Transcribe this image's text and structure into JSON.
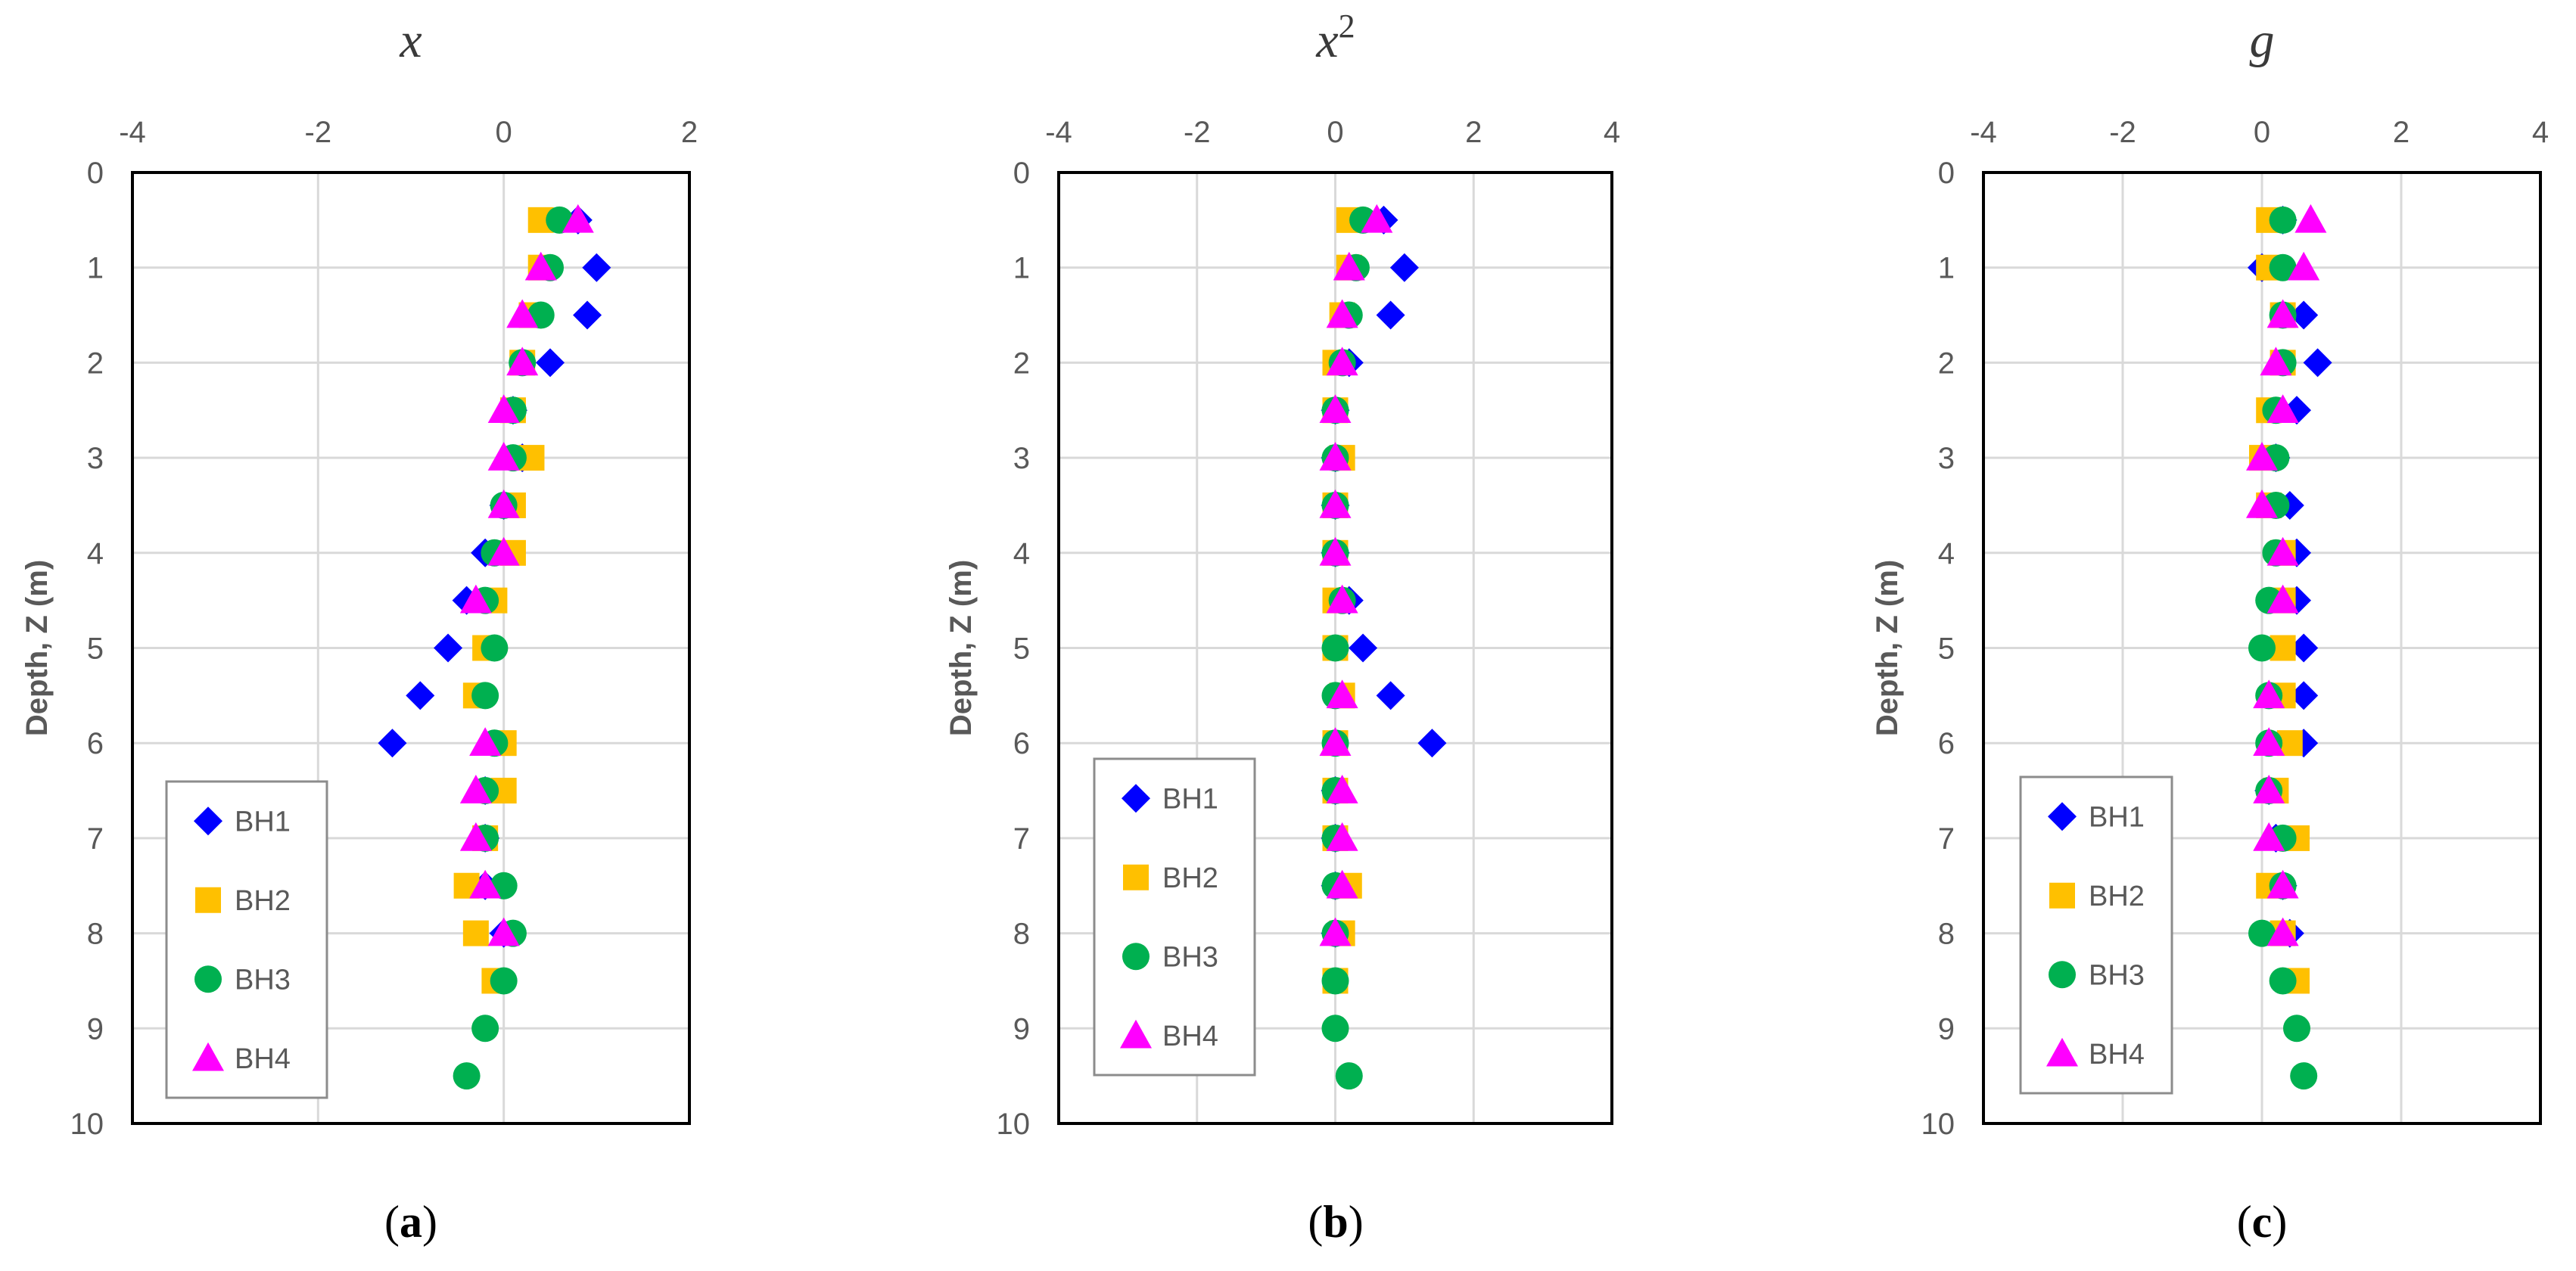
{
  "chart_data": [
    {
      "type": "scatter",
      "title": "x",
      "title_superscript": "",
      "caption_letter": "a",
      "ylabel": "Depth, Z (m)",
      "xlim": [
        -4,
        2
      ],
      "xticks": [
        -4,
        -2,
        0,
        2
      ],
      "ylim": [
        0,
        10
      ],
      "yticks": [
        0,
        1,
        2,
        3,
        4,
        5,
        6,
        7,
        8,
        9,
        10
      ],
      "y_inverted": true,
      "grid": true,
      "legend_position": "bottom-left",
      "series": [
        {
          "name": "BH1",
          "marker": "diamond",
          "color": "#0000ff",
          "points": [
            [
              0.8,
              0.5
            ],
            [
              1.0,
              1.0
            ],
            [
              0.9,
              1.5
            ],
            [
              0.5,
              2.0
            ],
            [
              0.1,
              2.5
            ],
            [
              0.2,
              3.0
            ],
            [
              0.0,
              3.5
            ],
            [
              -0.2,
              4.0
            ],
            [
              -0.4,
              4.5
            ],
            [
              -0.6,
              5.0
            ],
            [
              -0.9,
              5.5
            ],
            [
              -1.2,
              6.0
            ],
            [
              -0.2,
              6.5
            ],
            [
              -0.2,
              7.0
            ],
            [
              -0.2,
              7.5
            ],
            [
              0.0,
              8.0
            ]
          ]
        },
        {
          "name": "BH2",
          "marker": "square",
          "color": "#ffc000",
          "points": [
            [
              0.4,
              0.5
            ],
            [
              0.4,
              1.0
            ],
            [
              0.3,
              1.5
            ],
            [
              0.2,
              2.0
            ],
            [
              0.1,
              2.5
            ],
            [
              0.3,
              3.0
            ],
            [
              0.1,
              3.5
            ],
            [
              0.1,
              4.0
            ],
            [
              -0.1,
              4.5
            ],
            [
              -0.2,
              5.0
            ],
            [
              -0.3,
              5.5
            ],
            [
              0.0,
              6.0
            ],
            [
              0.0,
              6.5
            ],
            [
              -0.2,
              7.0
            ],
            [
              -0.4,
              7.5
            ],
            [
              -0.3,
              8.0
            ],
            [
              -0.1,
              8.5
            ]
          ]
        },
        {
          "name": "BH3",
          "marker": "circle",
          "color": "#00b050",
          "points": [
            [
              0.6,
              0.5
            ],
            [
              0.5,
              1.0
            ],
            [
              0.4,
              1.5
            ],
            [
              0.2,
              2.0
            ],
            [
              0.1,
              2.5
            ],
            [
              0.1,
              3.0
            ],
            [
              0.0,
              3.5
            ],
            [
              -0.1,
              4.0
            ],
            [
              -0.2,
              4.5
            ],
            [
              -0.1,
              5.0
            ],
            [
              -0.2,
              5.5
            ],
            [
              -0.1,
              6.0
            ],
            [
              -0.2,
              6.5
            ],
            [
              -0.2,
              7.0
            ],
            [
              0.0,
              7.5
            ],
            [
              0.1,
              8.0
            ],
            [
              0.0,
              8.5
            ],
            [
              -0.2,
              9.0
            ],
            [
              -0.4,
              9.5
            ]
          ]
        },
        {
          "name": "BH4",
          "marker": "triangle",
          "color": "#ff00ff",
          "points": [
            [
              0.8,
              0.5
            ],
            [
              0.4,
              1.0
            ],
            [
              0.2,
              1.5
            ],
            [
              0.2,
              2.0
            ],
            [
              0.0,
              2.5
            ],
            [
              0.0,
              3.0
            ],
            [
              0.0,
              3.5
            ],
            [
              0.0,
              4.0
            ],
            [
              -0.3,
              4.5
            ],
            [
              -0.2,
              6.0
            ],
            [
              -0.3,
              6.5
            ],
            [
              -0.3,
              7.0
            ],
            [
              -0.2,
              7.5
            ],
            [
              0.0,
              8.0
            ]
          ]
        }
      ]
    },
    {
      "type": "scatter",
      "title": "x",
      "title_superscript": "2",
      "caption_letter": "b",
      "ylabel": "Depth, Z (m)",
      "xlim": [
        -4,
        4
      ],
      "xticks": [
        -4,
        -2,
        0,
        2,
        4
      ],
      "ylim": [
        0,
        10
      ],
      "yticks": [
        0,
        1,
        2,
        3,
        4,
        5,
        6,
        7,
        8,
        9,
        10
      ],
      "y_inverted": true,
      "grid": true,
      "legend_position": "bottom-left",
      "series": [
        {
          "name": "BH1",
          "marker": "diamond",
          "color": "#0000ff",
          "points": [
            [
              0.7,
              0.5
            ],
            [
              1.0,
              1.0
            ],
            [
              0.8,
              1.5
            ],
            [
              0.2,
              2.0
            ],
            [
              0.0,
              2.5
            ],
            [
              0.0,
              3.0
            ],
            [
              0.0,
              3.5
            ],
            [
              0.0,
              4.0
            ],
            [
              0.2,
              4.5
            ],
            [
              0.4,
              5.0
            ],
            [
              0.8,
              5.5
            ],
            [
              1.4,
              6.0
            ],
            [
              0.0,
              6.5
            ],
            [
              0.0,
              7.0
            ],
            [
              0.0,
              7.5
            ],
            [
              0.0,
              8.0
            ]
          ]
        },
        {
          "name": "BH2",
          "marker": "square",
          "color": "#ffc000",
          "points": [
            [
              0.2,
              0.5
            ],
            [
              0.2,
              1.0
            ],
            [
              0.1,
              1.5
            ],
            [
              0.0,
              2.0
            ],
            [
              0.0,
              2.5
            ],
            [
              0.1,
              3.0
            ],
            [
              0.0,
              3.5
            ],
            [
              0.0,
              4.0
            ],
            [
              0.0,
              4.5
            ],
            [
              0.0,
              5.0
            ],
            [
              0.1,
              5.5
            ],
            [
              0.0,
              6.0
            ],
            [
              0.0,
              6.5
            ],
            [
              0.0,
              7.0
            ],
            [
              0.2,
              7.5
            ],
            [
              0.1,
              8.0
            ],
            [
              0.0,
              8.5
            ]
          ]
        },
        {
          "name": "BH3",
          "marker": "circle",
          "color": "#00b050",
          "points": [
            [
              0.4,
              0.5
            ],
            [
              0.3,
              1.0
            ],
            [
              0.2,
              1.5
            ],
            [
              0.1,
              2.0
            ],
            [
              0.0,
              2.5
            ],
            [
              0.0,
              3.0
            ],
            [
              0.0,
              3.5
            ],
            [
              0.0,
              4.0
            ],
            [
              0.1,
              4.5
            ],
            [
              0.0,
              5.0
            ],
            [
              0.0,
              5.5
            ],
            [
              0.0,
              6.0
            ],
            [
              0.0,
              6.5
            ],
            [
              0.0,
              7.0
            ],
            [
              0.0,
              7.5
            ],
            [
              0.0,
              8.0
            ],
            [
              0.0,
              8.5
            ],
            [
              0.0,
              9.0
            ],
            [
              0.2,
              9.5
            ]
          ]
        },
        {
          "name": "BH4",
          "marker": "triangle",
          "color": "#ff00ff",
          "points": [
            [
              0.6,
              0.5
            ],
            [
              0.2,
              1.0
            ],
            [
              0.1,
              1.5
            ],
            [
              0.1,
              2.0
            ],
            [
              0.0,
              2.5
            ],
            [
              0.0,
              3.0
            ],
            [
              0.0,
              3.5
            ],
            [
              0.0,
              4.0
            ],
            [
              0.1,
              4.5
            ],
            [
              0.1,
              5.5
            ],
            [
              0.0,
              6.0
            ],
            [
              0.1,
              6.5
            ],
            [
              0.1,
              7.0
            ],
            [
              0.1,
              7.5
            ],
            [
              0.0,
              8.0
            ]
          ]
        }
      ]
    },
    {
      "type": "scatter",
      "title": "g",
      "title_superscript": "",
      "caption_letter": "c",
      "ylabel": "Depth, Z (m)",
      "xlim": [
        -4,
        4
      ],
      "xticks": [
        -4,
        -2,
        0,
        2,
        4
      ],
      "ylim": [
        0,
        10
      ],
      "yticks": [
        0,
        1,
        2,
        3,
        4,
        5,
        6,
        7,
        8,
        9,
        10
      ],
      "y_inverted": true,
      "grid": true,
      "legend_position": "bottom-left",
      "series": [
        {
          "name": "BH1",
          "marker": "diamond",
          "color": "#0000ff",
          "points": [
            [
              0.3,
              0.5
            ],
            [
              0.0,
              1.0
            ],
            [
              0.6,
              1.5
            ],
            [
              0.8,
              2.0
            ],
            [
              0.5,
              2.5
            ],
            [
              0.2,
              3.0
            ],
            [
              0.4,
              3.5
            ],
            [
              0.5,
              4.0
            ],
            [
              0.5,
              4.5
            ],
            [
              0.6,
              5.0
            ],
            [
              0.6,
              5.5
            ],
            [
              0.6,
              6.0
            ],
            [
              0.1,
              6.5
            ],
            [
              0.2,
              7.0
            ],
            [
              0.3,
              7.5
            ],
            [
              0.4,
              8.0
            ]
          ]
        },
        {
          "name": "BH2",
          "marker": "square",
          "color": "#ffc000",
          "points": [
            [
              0.1,
              0.5
            ],
            [
              0.1,
              1.0
            ],
            [
              0.3,
              1.5
            ],
            [
              0.3,
              2.0
            ],
            [
              0.1,
              2.5
            ],
            [
              0.0,
              3.0
            ],
            [
              0.1,
              3.5
            ],
            [
              0.3,
              4.0
            ],
            [
              0.3,
              4.5
            ],
            [
              0.3,
              5.0
            ],
            [
              0.3,
              5.5
            ],
            [
              0.4,
              6.0
            ],
            [
              0.2,
              6.5
            ],
            [
              0.5,
              7.0
            ],
            [
              0.1,
              7.5
            ],
            [
              0.3,
              8.0
            ],
            [
              0.5,
              8.5
            ]
          ]
        },
        {
          "name": "BH3",
          "marker": "circle",
          "color": "#00b050",
          "points": [
            [
              0.3,
              0.5
            ],
            [
              0.3,
              1.0
            ],
            [
              0.3,
              1.5
            ],
            [
              0.3,
              2.0
            ],
            [
              0.2,
              2.5
            ],
            [
              0.2,
              3.0
            ],
            [
              0.2,
              3.5
            ],
            [
              0.2,
              4.0
            ],
            [
              0.1,
              4.5
            ],
            [
              0.0,
              5.0
            ],
            [
              0.1,
              5.5
            ],
            [
              0.1,
              6.0
            ],
            [
              0.1,
              6.5
            ],
            [
              0.3,
              7.0
            ],
            [
              0.3,
              7.5
            ],
            [
              0.0,
              8.0
            ],
            [
              0.3,
              8.5
            ],
            [
              0.5,
              9.0
            ],
            [
              0.6,
              9.5
            ]
          ]
        },
        {
          "name": "BH4",
          "marker": "triangle",
          "color": "#ff00ff",
          "points": [
            [
              0.7,
              0.5
            ],
            [
              0.6,
              1.0
            ],
            [
              0.3,
              1.5
            ],
            [
              0.2,
              2.0
            ],
            [
              0.3,
              2.5
            ],
            [
              0.0,
              3.0
            ],
            [
              0.0,
              3.5
            ],
            [
              0.3,
              4.0
            ],
            [
              0.3,
              4.5
            ],
            [
              0.1,
              5.5
            ],
            [
              0.1,
              6.0
            ],
            [
              0.1,
              6.5
            ],
            [
              0.1,
              7.0
            ],
            [
              0.3,
              7.5
            ],
            [
              0.3,
              8.0
            ]
          ]
        }
      ]
    }
  ]
}
